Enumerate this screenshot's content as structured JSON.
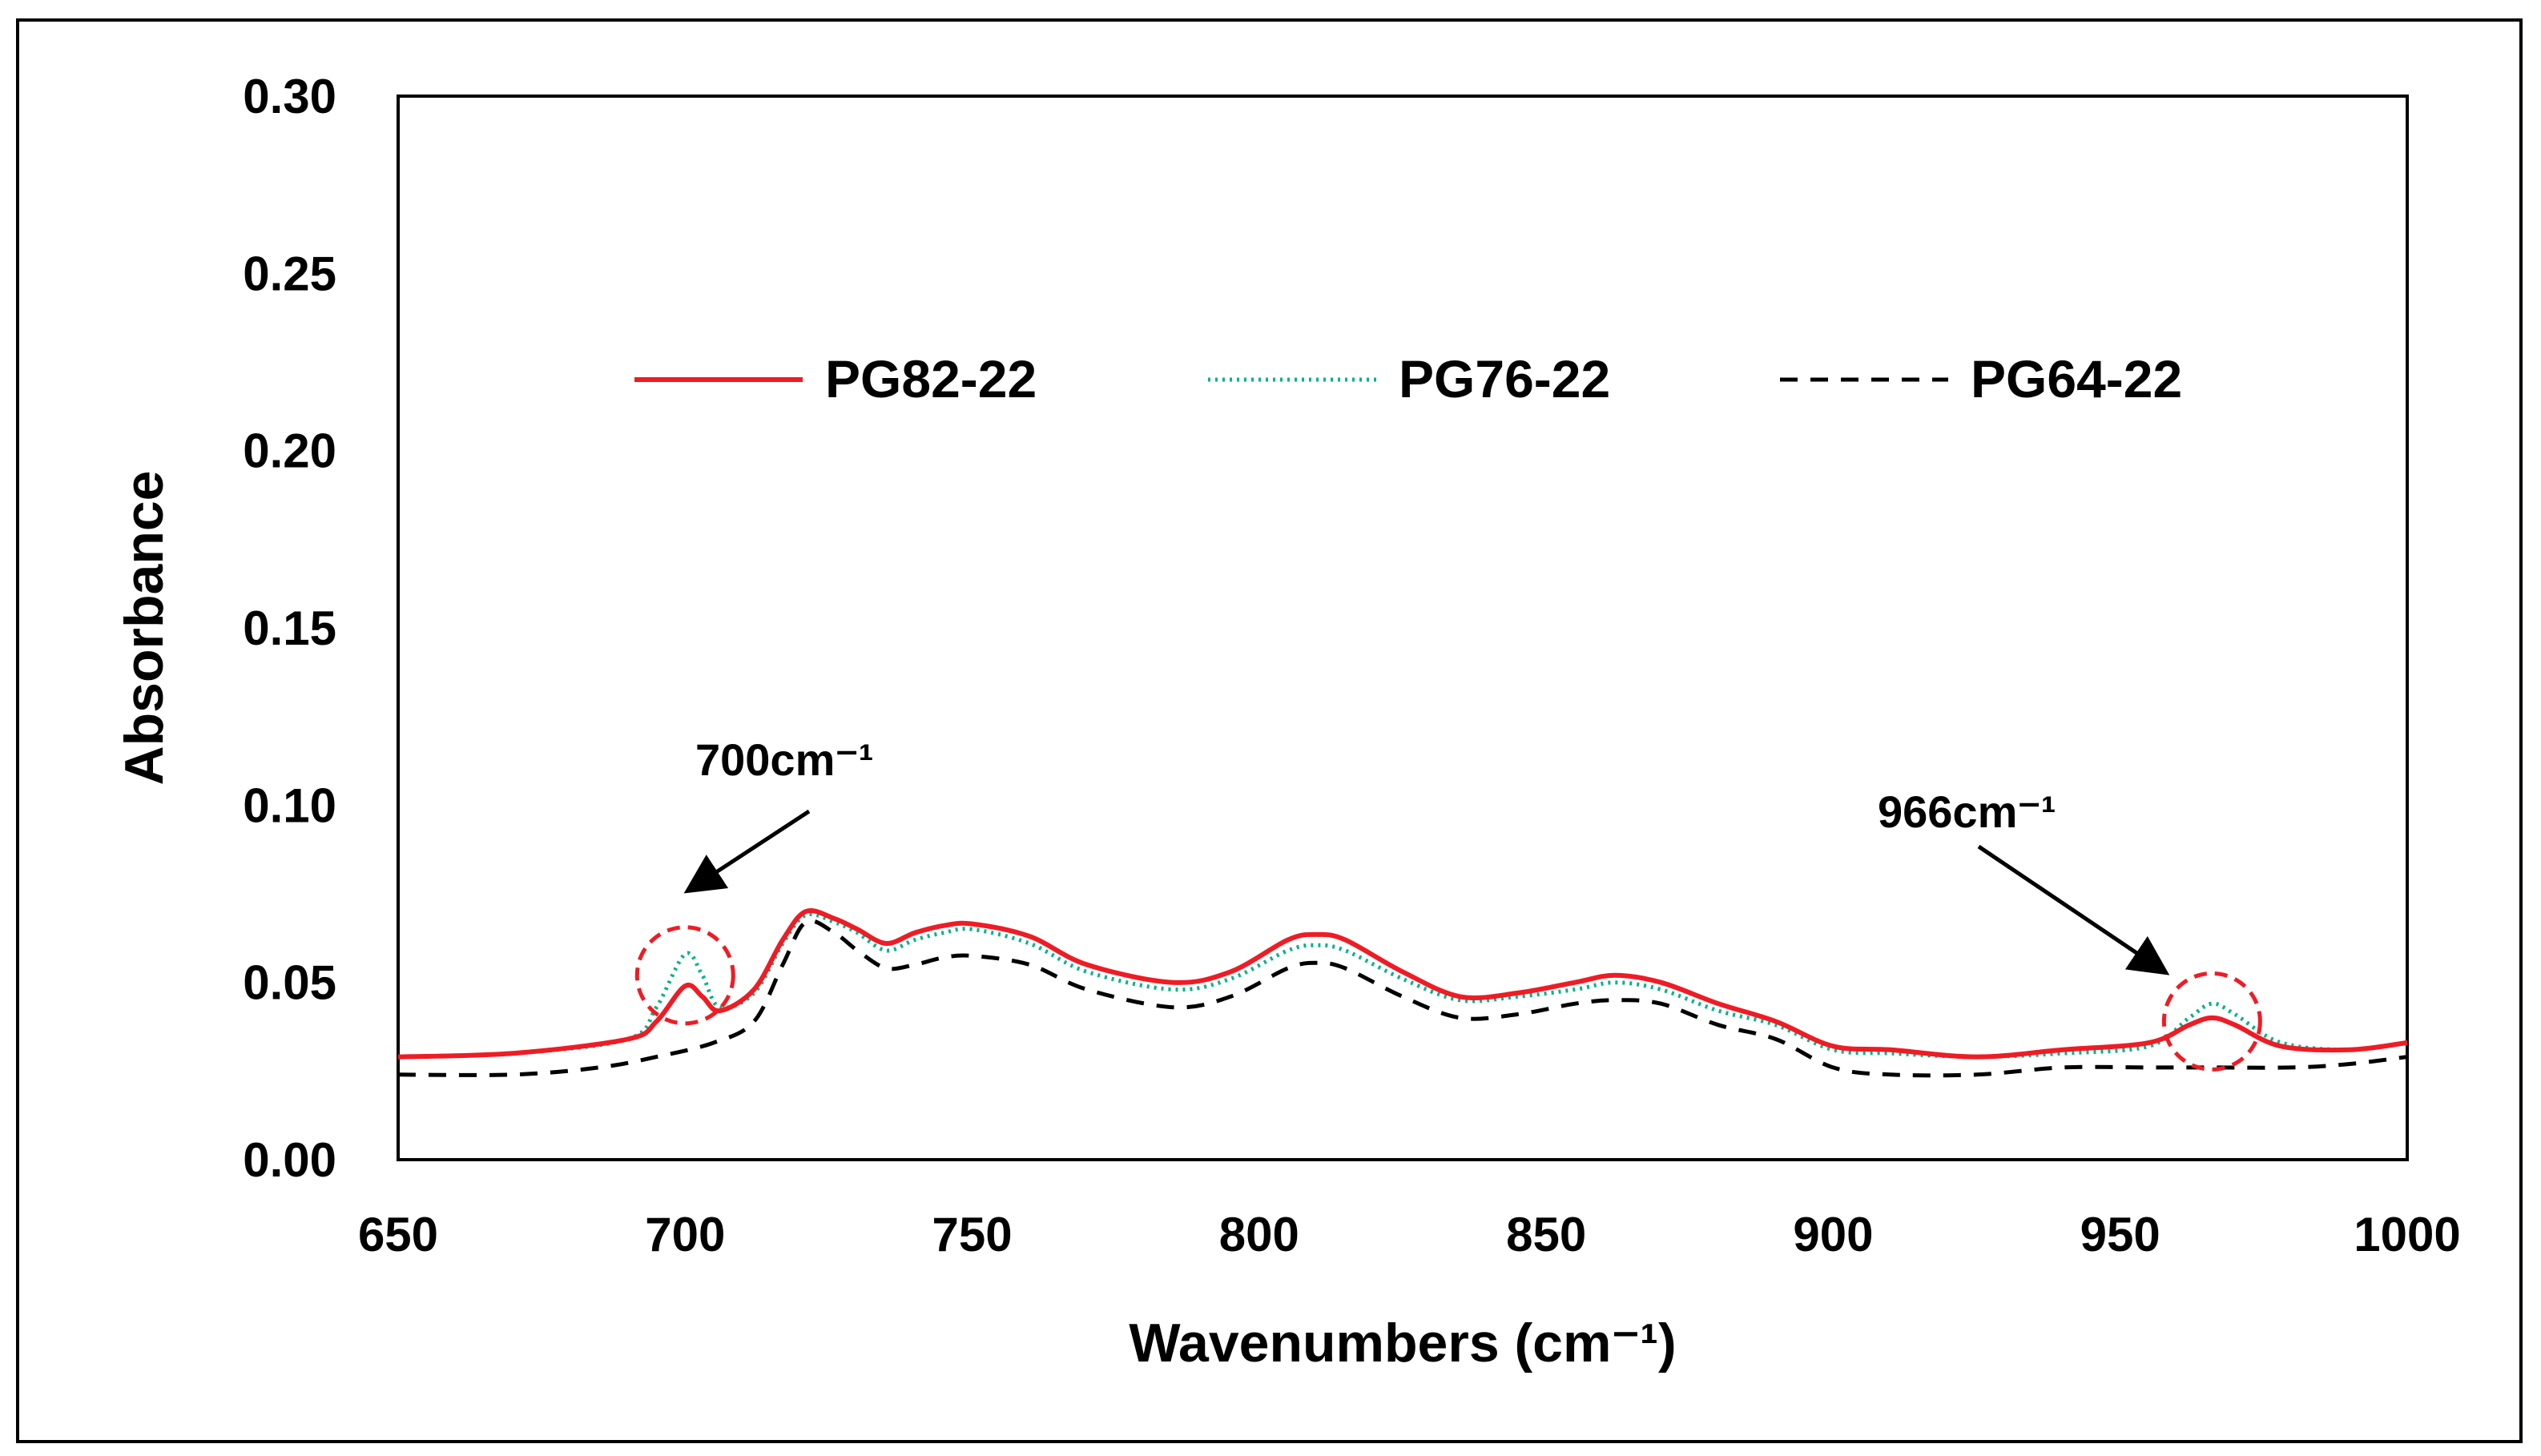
{
  "chart_data": {
    "type": "line",
    "title": "",
    "xlabel": "Wavenumbers (cm⁻¹)",
    "ylabel": "Absorbance",
    "xlim": [
      650,
      1000
    ],
    "ylim": [
      0,
      0.3
    ],
    "x_ticks": [
      "650",
      "700",
      "750",
      "800",
      "850",
      "900",
      "950",
      "1000"
    ],
    "y_ticks": [
      "0.00",
      "0.05",
      "0.10",
      "0.15",
      "0.20",
      "0.25",
      "0.30"
    ],
    "grid": false,
    "legend_position": "top-center",
    "series": [
      {
        "name": "PG82-22",
        "color": "#ee1c24",
        "style": "solid",
        "points": [
          [
            650,
            0.029
          ],
          [
            670,
            0.03
          ],
          [
            690,
            0.034
          ],
          [
            695,
            0.039
          ],
          [
            700,
            0.049
          ],
          [
            703,
            0.046
          ],
          [
            706,
            0.042
          ],
          [
            712,
            0.048
          ],
          [
            717,
            0.062
          ],
          [
            721,
            0.07
          ],
          [
            726,
            0.068
          ],
          [
            730,
            0.065
          ],
          [
            735,
            0.061
          ],
          [
            740,
            0.064
          ],
          [
            745,
            0.066
          ],
          [
            750,
            0.0665
          ],
          [
            760,
            0.063
          ],
          [
            770,
            0.055
          ],
          [
            785,
            0.05
          ],
          [
            795,
            0.053
          ],
          [
            805,
            0.062
          ],
          [
            810,
            0.0635
          ],
          [
            815,
            0.062
          ],
          [
            825,
            0.053
          ],
          [
            835,
            0.046
          ],
          [
            845,
            0.047
          ],
          [
            855,
            0.05
          ],
          [
            862,
            0.052
          ],
          [
            870,
            0.05
          ],
          [
            880,
            0.044
          ],
          [
            890,
            0.039
          ],
          [
            900,
            0.032
          ],
          [
            910,
            0.031
          ],
          [
            925,
            0.029
          ],
          [
            940,
            0.031
          ],
          [
            955,
            0.033
          ],
          [
            962,
            0.038
          ],
          [
            966,
            0.04
          ],
          [
            970,
            0.038
          ],
          [
            978,
            0.032
          ],
          [
            990,
            0.031
          ],
          [
            1000,
            0.033
          ]
        ]
      },
      {
        "name": "PG76-22",
        "color": "#00b388",
        "style": "dotted",
        "points": [
          [
            650,
            0.029
          ],
          [
            670,
            0.03
          ],
          [
            690,
            0.034
          ],
          [
            695,
            0.043
          ],
          [
            700,
            0.058
          ],
          [
            703,
            0.052
          ],
          [
            706,
            0.043
          ],
          [
            712,
            0.047
          ],
          [
            717,
            0.061
          ],
          [
            721,
            0.069
          ],
          [
            726,
            0.067
          ],
          [
            730,
            0.064
          ],
          [
            735,
            0.059
          ],
          [
            740,
            0.062
          ],
          [
            745,
            0.064
          ],
          [
            750,
            0.065
          ],
          [
            760,
            0.061
          ],
          [
            770,
            0.053
          ],
          [
            785,
            0.048
          ],
          [
            795,
            0.051
          ],
          [
            805,
            0.059
          ],
          [
            810,
            0.0605
          ],
          [
            815,
            0.059
          ],
          [
            825,
            0.051
          ],
          [
            835,
            0.045
          ],
          [
            845,
            0.046
          ],
          [
            855,
            0.048
          ],
          [
            862,
            0.05
          ],
          [
            870,
            0.048
          ],
          [
            880,
            0.042
          ],
          [
            890,
            0.038
          ],
          [
            900,
            0.031
          ],
          [
            910,
            0.03
          ],
          [
            925,
            0.029
          ],
          [
            940,
            0.03
          ],
          [
            955,
            0.032
          ],
          [
            962,
            0.04
          ],
          [
            966,
            0.044
          ],
          [
            970,
            0.041
          ],
          [
            978,
            0.033
          ],
          [
            990,
            0.031
          ],
          [
            1000,
            0.033
          ]
        ]
      },
      {
        "name": "PG64-22",
        "color": "#000000",
        "style": "dashed",
        "points": [
          [
            650,
            0.024
          ],
          [
            670,
            0.024
          ],
          [
            685,
            0.026
          ],
          [
            695,
            0.029
          ],
          [
            705,
            0.033
          ],
          [
            712,
            0.039
          ],
          [
            717,
            0.055
          ],
          [
            721,
            0.067
          ],
          [
            726,
            0.064
          ],
          [
            730,
            0.059
          ],
          [
            735,
            0.054
          ],
          [
            740,
            0.055
          ],
          [
            745,
            0.057
          ],
          [
            750,
            0.0575
          ],
          [
            760,
            0.055
          ],
          [
            770,
            0.048
          ],
          [
            785,
            0.043
          ],
          [
            795,
            0.046
          ],
          [
            805,
            0.054
          ],
          [
            810,
            0.0555
          ],
          [
            815,
            0.054
          ],
          [
            825,
            0.046
          ],
          [
            835,
            0.04
          ],
          [
            845,
            0.041
          ],
          [
            855,
            0.044
          ],
          [
            862,
            0.045
          ],
          [
            870,
            0.044
          ],
          [
            880,
            0.038
          ],
          [
            890,
            0.034
          ],
          [
            900,
            0.026
          ],
          [
            910,
            0.024
          ],
          [
            925,
            0.024
          ],
          [
            940,
            0.026
          ],
          [
            955,
            0.026
          ],
          [
            966,
            0.026
          ],
          [
            980,
            0.026
          ],
          [
            990,
            0.027
          ],
          [
            1000,
            0.029
          ]
        ]
      }
    ],
    "annotations": [
      {
        "label": "700cm⁻¹",
        "x": 700,
        "y": 0.052
      },
      {
        "label": "966cm⁻¹",
        "x": 966,
        "y": 0.039
      }
    ]
  }
}
